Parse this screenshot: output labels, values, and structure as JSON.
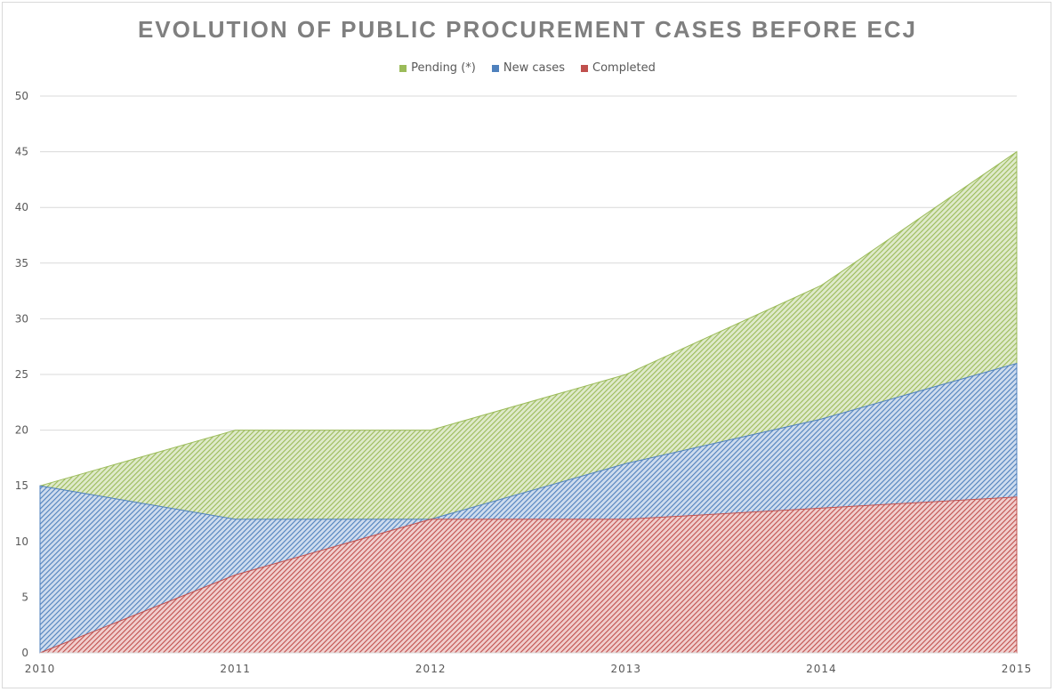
{
  "chart_data": {
    "type": "area",
    "title": "EVOLUTION OF PUBLIC PROCUREMENT CASES BEFORE ECJ",
    "categories": [
      "2010",
      "2011",
      "2012",
      "2013",
      "2014",
      "2015"
    ],
    "series": [
      {
        "name": "Pending (*)",
        "values": [
          15,
          20,
          20,
          25,
          33,
          45
        ],
        "color": "#9bbb59"
      },
      {
        "name": "New cases",
        "values": [
          15,
          12,
          12,
          17,
          21,
          26
        ],
        "color": "#4f81bd"
      },
      {
        "name": "Completed",
        "values": [
          0,
          7,
          12,
          12,
          13,
          14
        ],
        "color": "#c0504d"
      }
    ],
    "ylim": [
      0,
      50
    ],
    "yticks": [
      0,
      5,
      10,
      15,
      20,
      25,
      30,
      35,
      40,
      45,
      50
    ],
    "grid": true,
    "legend_position": "top"
  }
}
